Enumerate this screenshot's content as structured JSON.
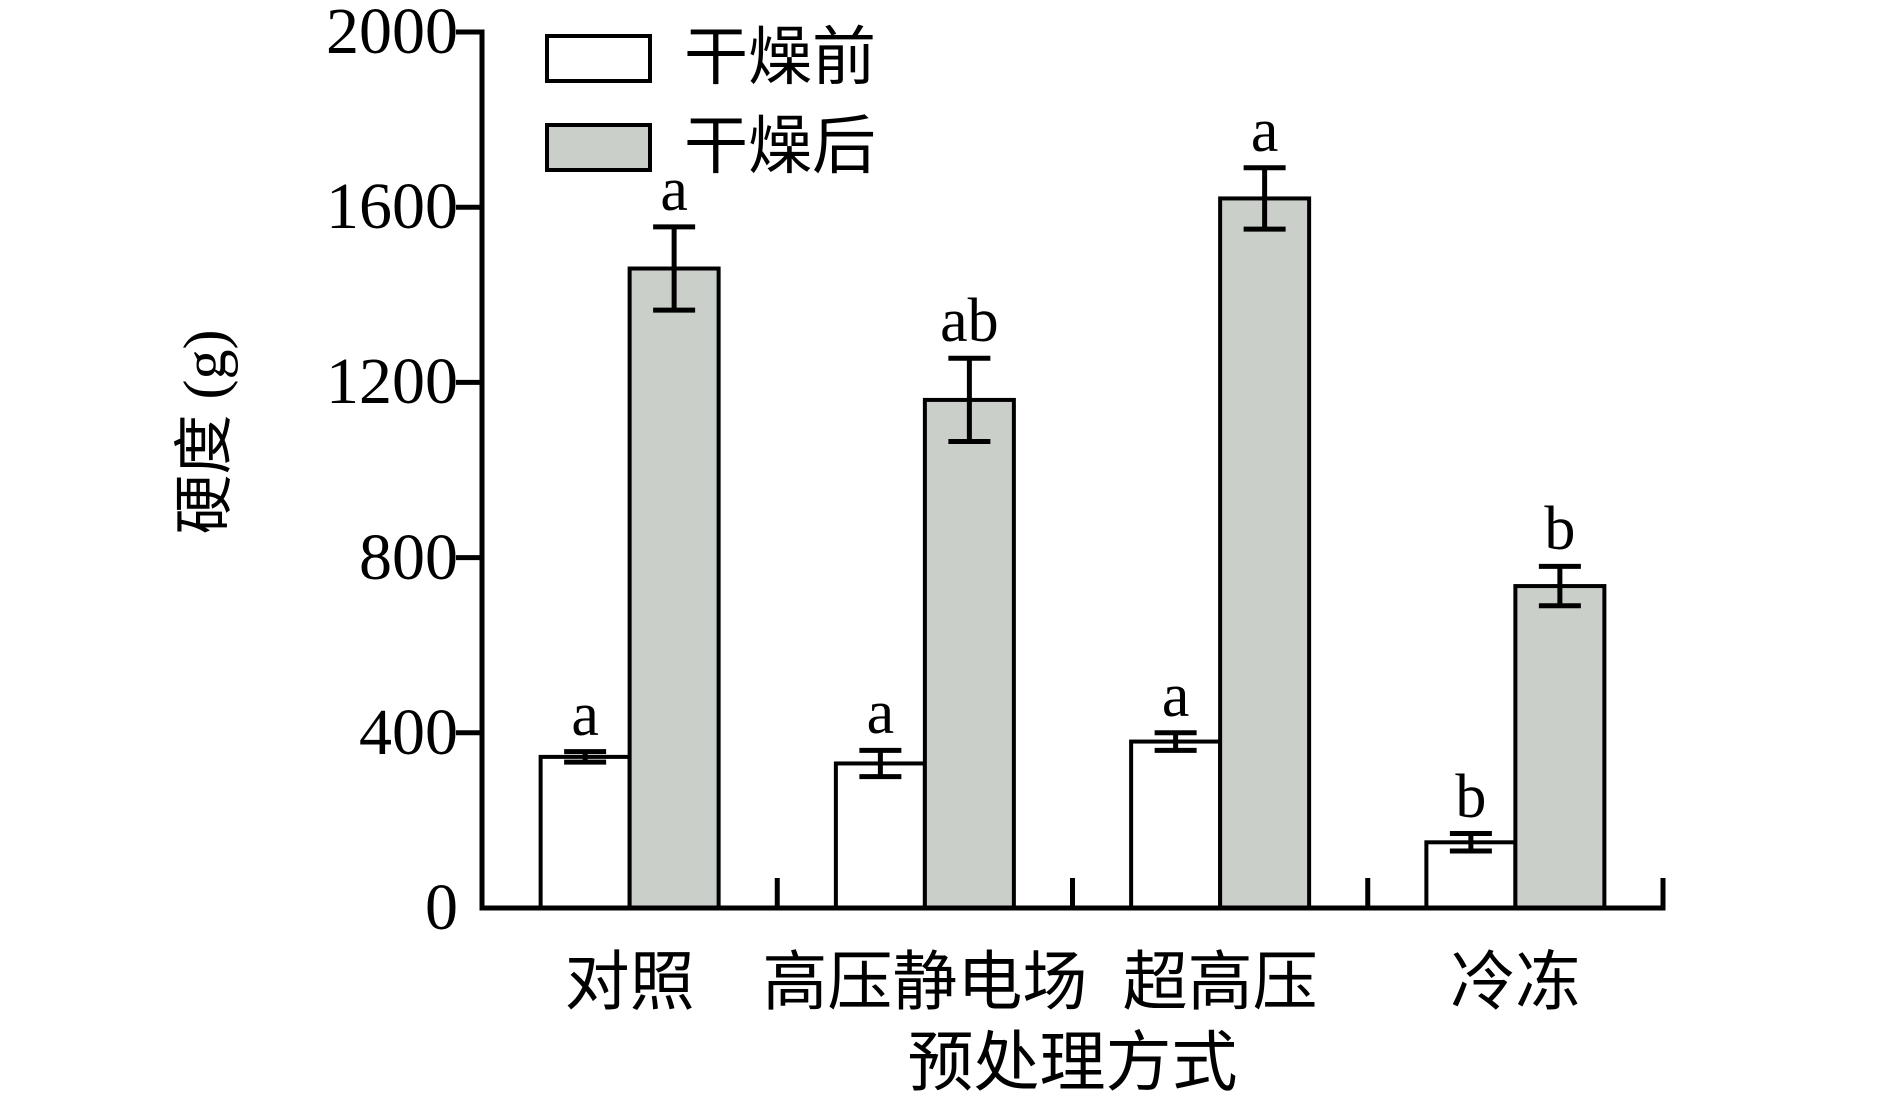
{
  "chart_data": {
    "type": "bar",
    "title": "",
    "ylabel": "硬度 (g)",
    "xlabel": "预处理方式",
    "categories": [
      "对照",
      "高压静电场",
      "超高压",
      "冷冻"
    ],
    "ylim": [
      0,
      2000
    ],
    "yticks": [
      0,
      400,
      800,
      1200,
      1600,
      2000
    ],
    "grid": false,
    "error_bars": true,
    "legend_position": "top-left inside plot",
    "background": "#ffffff",
    "bar_stroke": "#000000",
    "series": [
      {
        "name": "干燥前",
        "fill": "#ffffff",
        "values": [
          345,
          330,
          380,
          150
        ],
        "errors": [
          12,
          30,
          20,
          20
        ],
        "sig_letters": [
          "a",
          "a",
          "a",
          "b"
        ]
      },
      {
        "name": "干燥后",
        "fill": "#cacfca",
        "values": [
          1460,
          1160,
          1620,
          735
        ],
        "errors": [
          95,
          95,
          70,
          45
        ],
        "sig_letters": [
          "a",
          "ab",
          "a",
          "b"
        ]
      }
    ]
  }
}
